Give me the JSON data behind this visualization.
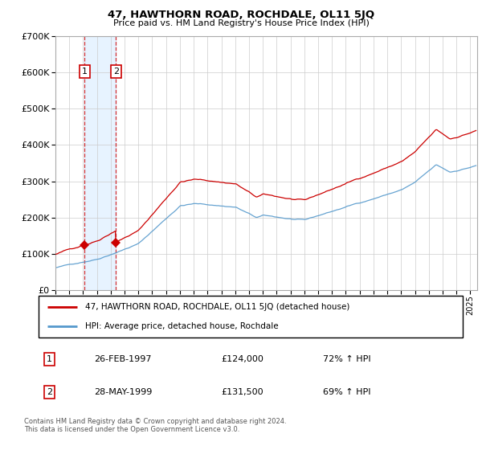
{
  "title": "47, HAWTHORN ROAD, ROCHDALE, OL11 5JQ",
  "subtitle": "Price paid vs. HM Land Registry's House Price Index (HPI)",
  "legend_line1": "47, HAWTHORN ROAD, ROCHDALE, OL11 5JQ (detached house)",
  "legend_line2": "HPI: Average price, detached house, Rochdale",
  "transaction1_date": "26-FEB-1997",
  "transaction1_price": "£124,000",
  "transaction1_hpi": "72% ↑ HPI",
  "transaction1_year": 1997.12,
  "transaction1_price_val": 124000,
  "transaction2_date": "28-MAY-1999",
  "transaction2_price": "£131,500",
  "transaction2_hpi": "69% ↑ HPI",
  "transaction2_year": 1999.37,
  "transaction2_price_val": 131500,
  "footer": "Contains HM Land Registry data © Crown copyright and database right 2024.\nThis data is licensed under the Open Government Licence v3.0.",
  "hpi_color": "#5599cc",
  "property_color": "#cc0000",
  "marker_color": "#cc0000",
  "highlight_color": "#ddeeff",
  "vline_color": "#cc0000",
  "ylim": [
    0,
    700000
  ],
  "yticks": [
    0,
    100000,
    200000,
    300000,
    400000,
    500000,
    600000,
    700000
  ],
  "xlim_start": 1995.0,
  "xlim_end": 2025.5
}
